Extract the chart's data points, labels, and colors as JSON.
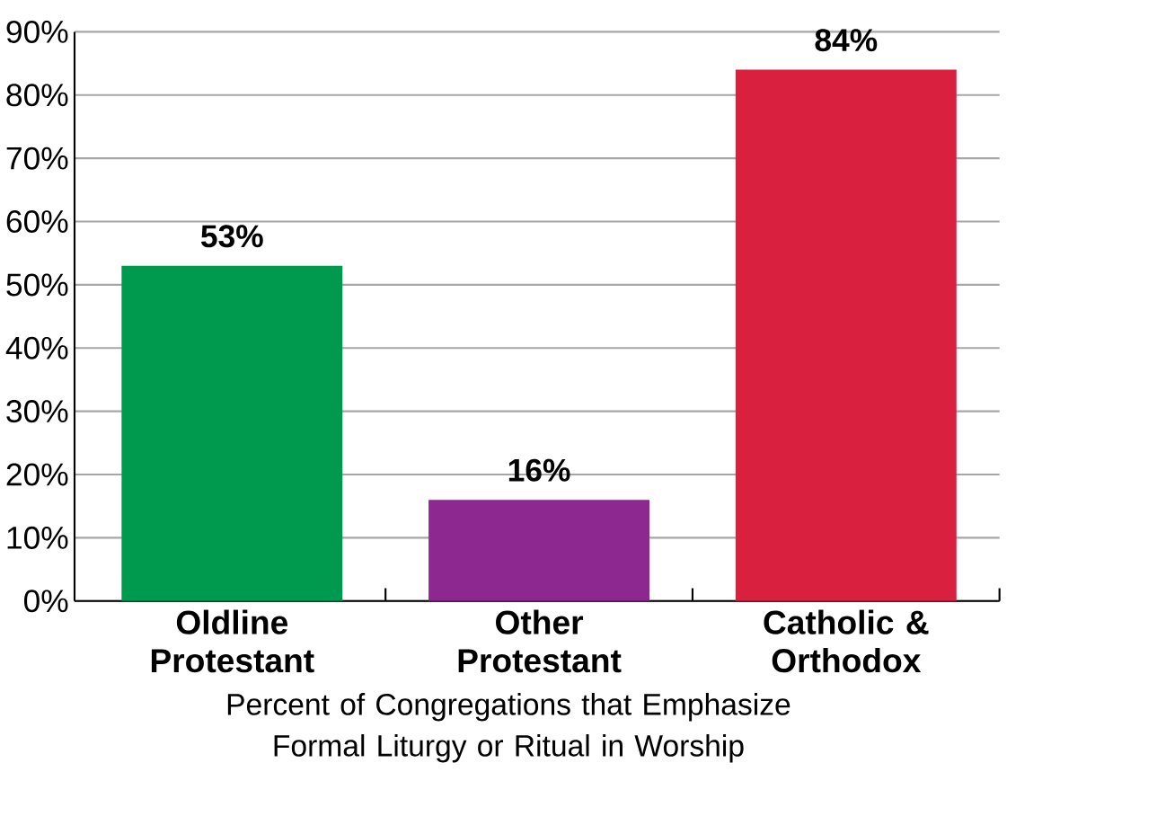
{
  "chart_data": {
    "type": "bar",
    "xlabel": "Percent of Congregations that Emphasize Formal Liturgy or Ritual in Worship",
    "categories": [
      "Oldline Protestant",
      "Other Protestant",
      "Catholic & Orthodox"
    ],
    "values": [
      53,
      16,
      84
    ],
    "value_labels": [
      "53%",
      "16%",
      "84%"
    ],
    "colors": [
      "#009a4e",
      "#8d2891",
      "#d9203e"
    ],
    "ylim": [
      0,
      90
    ],
    "yticks": [
      {
        "value": 0,
        "label": "0%"
      },
      {
        "value": 10,
        "label": "10%"
      },
      {
        "value": 20,
        "label": "20%"
      },
      {
        "value": 30,
        "label": "30%"
      },
      {
        "value": 40,
        "label": "40%"
      },
      {
        "value": 50,
        "label": "50%"
      },
      {
        "value": 60,
        "label": "60%"
      },
      {
        "value": 70,
        "label": "70%"
      },
      {
        "value": 80,
        "label": "80%"
      },
      {
        "value": 90,
        "label": "90%"
      }
    ],
    "grid": "y"
  }
}
